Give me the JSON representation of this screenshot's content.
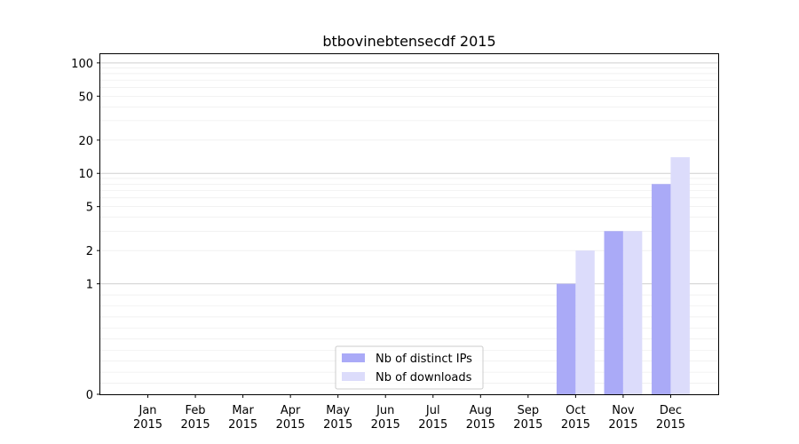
{
  "chart_data": {
    "type": "bar",
    "title": "btbovinebtensecdf 2015",
    "xlabel": "",
    "ylabel": "",
    "y_scale": "symlog",
    "ylim": [
      0,
      120
    ],
    "y_ticks": [
      {
        "value": 0,
        "label": "0"
      },
      {
        "value": 1,
        "label": "1"
      },
      {
        "value": 2,
        "label": "2"
      },
      {
        "value": 5,
        "label": "5"
      },
      {
        "value": 10,
        "label": "10"
      },
      {
        "value": 20,
        "label": "20"
      },
      {
        "value": 50,
        "label": "50"
      },
      {
        "value": 100,
        "label": "100"
      }
    ],
    "major_grid": [
      1,
      10,
      100
    ],
    "minor_grid": true,
    "categories": [
      {
        "month": "Jan",
        "year": "2015"
      },
      {
        "month": "Feb",
        "year": "2015"
      },
      {
        "month": "Mar",
        "year": "2015"
      },
      {
        "month": "Apr",
        "year": "2015"
      },
      {
        "month": "May",
        "year": "2015"
      },
      {
        "month": "Jun",
        "year": "2015"
      },
      {
        "month": "Jul",
        "year": "2015"
      },
      {
        "month": "Aug",
        "year": "2015"
      },
      {
        "month": "Sep",
        "year": "2015"
      },
      {
        "month": "Oct",
        "year": "2015"
      },
      {
        "month": "Nov",
        "year": "2015"
      },
      {
        "month": "Dec",
        "year": "2015"
      }
    ],
    "series": [
      {
        "name": "Nb of distinct IPs",
        "color": "#aaaaf7",
        "values": [
          0,
          0,
          0,
          0,
          0,
          0,
          0,
          0,
          0,
          1,
          3,
          8
        ]
      },
      {
        "name": "Nb of downloads",
        "color": "#dcdcfb",
        "values": [
          0,
          0,
          0,
          0,
          0,
          0,
          0,
          0,
          0,
          2,
          3,
          14
        ]
      }
    ],
    "legend_position": "bottom-center"
  }
}
